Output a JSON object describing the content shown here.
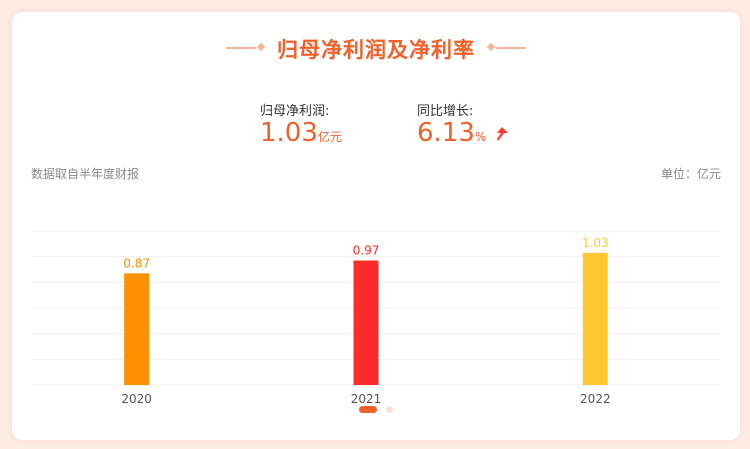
{
  "title": "归母净利润及净利率",
  "summary": {
    "profit_label": "归母净利润:",
    "profit_value": "1.03",
    "profit_unit": "亿元",
    "growth_label": "同比增长:",
    "growth_value": "6.13",
    "growth_unit": "%",
    "growth_icon": "arrow-up-icon"
  },
  "source_note": "数据取自半年度财报",
  "unit_note": "单位：亿元",
  "colors": {
    "accent": "#f0602a",
    "page_bg": "#fdebe4"
  },
  "chart_data": {
    "type": "bar",
    "categories": [
      "2020",
      "2021",
      "2022"
    ],
    "values": [
      0.87,
      0.97,
      1.03
    ],
    "data_labels": [
      "0.87",
      "0.97",
      "1.03"
    ],
    "bar_colors": [
      "#ff9000",
      "#ff2a2a",
      "#ffc832"
    ],
    "ylim": [
      0,
      1.2
    ],
    "grid": true,
    "xlabel": "",
    "ylabel": ""
  },
  "pager": {
    "pages": 2,
    "active": 1
  }
}
